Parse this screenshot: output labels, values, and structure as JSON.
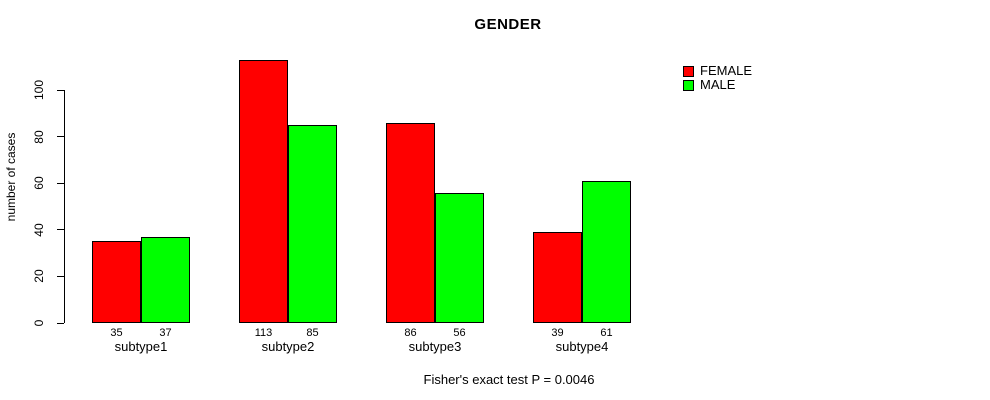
{
  "title": "GENDER",
  "caption": "Fisher's exact test P = 0.0046",
  "chart_data": {
    "type": "bar",
    "categories": [
      "subtype1",
      "subtype2",
      "subtype3",
      "subtype4"
    ],
    "series": [
      {
        "name": "FEMALE",
        "color": "#ff0000",
        "values": [
          35,
          113,
          86,
          39
        ]
      },
      {
        "name": "MALE",
        "color": "#00ff00",
        "values": [
          37,
          85,
          56,
          61
        ]
      }
    ],
    "xlabel": "",
    "ylabel": "number of cases",
    "yticks": [
      0,
      20,
      40,
      60,
      80,
      100
    ],
    "ylim": [
      0,
      113
    ],
    "grid": false,
    "bar_value_labels_shown": true,
    "legend_position": "top-right",
    "bar_border_color": "#000000",
    "background_color": "#ffffff"
  }
}
